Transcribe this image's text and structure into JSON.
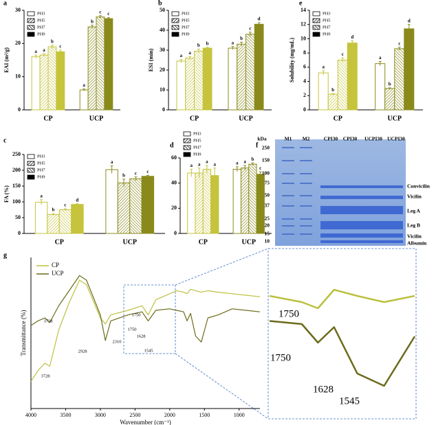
{
  "chart_data": [
    {
      "panel": "a",
      "type": "bar",
      "ylabel": "EAI (m²/g)",
      "categories": [
        "CP",
        "UCP"
      ],
      "category_colors": [
        "#c5c43c",
        "#8a8a1c"
      ],
      "series": [
        {
          "name": "PH3",
          "pattern": "open",
          "values": [
            16,
            6
          ],
          "errors": [
            0.5,
            0.3
          ],
          "letters": [
            "a",
            "a"
          ]
        },
        {
          "name": "PH5",
          "pattern": "hatch-right",
          "values": [
            16.5,
            25
          ],
          "errors": [
            0.4,
            0.5
          ],
          "letters": [
            "a",
            "b"
          ]
        },
        {
          "name": "PH7",
          "pattern": "hatch-left",
          "values": [
            19,
            28
          ],
          "errors": [
            0.5,
            0.4
          ],
          "letters": [
            "b",
            "c"
          ]
        },
        {
          "name": "PH9",
          "pattern": "solid",
          "values": [
            17.5,
            27.5
          ],
          "errors": [
            0.5,
            0.3
          ],
          "letters": [
            "c",
            "c"
          ]
        }
      ],
      "ylim": [
        0,
        30
      ],
      "yticks": [
        0,
        10,
        20,
        30
      ],
      "legend": "upper-left"
    },
    {
      "panel": "b",
      "type": "bar",
      "ylabel": "ESI (min)",
      "categories": [
        "CP",
        "UCP"
      ],
      "category_colors": [
        "#c5c43c",
        "#8a8a1c"
      ],
      "series": [
        {
          "name": "PH3",
          "pattern": "open",
          "values": [
            24.5,
            31
          ],
          "errors": [
            0.8,
            0.8
          ],
          "letters": [
            "a",
            "a"
          ]
        },
        {
          "name": "PH5",
          "pattern": "hatch-right",
          "values": [
            26,
            33
          ],
          "errors": [
            0.8,
            1.0
          ],
          "letters": [
            "a",
            "b"
          ]
        },
        {
          "name": "PH7",
          "pattern": "hatch-left",
          "values": [
            29.5,
            38
          ],
          "errors": [
            1.0,
            1.0
          ],
          "letters": [
            "b",
            "c"
          ]
        },
        {
          "name": "PH9",
          "pattern": "solid",
          "values": [
            31,
            43
          ],
          "errors": [
            0.5,
            0.8
          ],
          "letters": [
            "b",
            "d"
          ]
        }
      ],
      "ylim": [
        0,
        50
      ],
      "yticks": [
        0,
        10,
        20,
        30,
        40,
        50
      ],
      "legend": "upper-left"
    },
    {
      "panel": "e",
      "type": "bar",
      "ylabel": "Solubility (mg/mL)",
      "categories": [
        "CP",
        "UCP"
      ],
      "category_colors": [
        "#c5c43c",
        "#8a8a1c"
      ],
      "series": [
        {
          "name": "PH3",
          "pattern": "open",
          "values": [
            5.2,
            6.5
          ],
          "errors": [
            0.3,
            0.3
          ],
          "letters": [
            "a",
            "a"
          ]
        },
        {
          "name": "PH5",
          "pattern": "hatch-right",
          "values": [
            2.2,
            3
          ],
          "errors": [
            0.1,
            0.1
          ],
          "letters": [
            "b",
            "b"
          ]
        },
        {
          "name": "PH7",
          "pattern": "hatch-left",
          "values": [
            7,
            8.6
          ],
          "errors": [
            0.3,
            0.2
          ],
          "letters": [
            "c",
            "c"
          ]
        },
        {
          "name": "PH9",
          "pattern": "solid",
          "values": [
            9.4,
            11.4
          ],
          "errors": [
            0.3,
            0.6
          ],
          "letters": [
            "d",
            "d"
          ]
        }
      ],
      "ylim": [
        0,
        14
      ],
      "yticks": [
        0,
        2,
        4,
        6,
        8,
        10,
        12,
        14
      ],
      "legend": "upper-left"
    },
    {
      "panel": "c",
      "type": "bar",
      "ylabel": "FA (%)",
      "categories": [
        "CP",
        "UCP"
      ],
      "category_colors": [
        "#c5c43c",
        "#8a8a1c"
      ],
      "series": [
        {
          "name": "PH3",
          "pattern": "open",
          "values": [
            99,
            202
          ],
          "errors": [
            8,
            12
          ],
          "letters": [
            "a",
            "a"
          ]
        },
        {
          "name": "PH5",
          "pattern": "hatch-right",
          "values": [
            60,
            160
          ],
          "errors": [
            3,
            12
          ],
          "letters": [
            "b",
            "b"
          ]
        },
        {
          "name": "PH7",
          "pattern": "hatch-left",
          "values": [
            75,
            173
          ],
          "errors": [
            3,
            6
          ],
          "letters": [
            "c",
            "c"
          ]
        },
        {
          "name": "PH9",
          "pattern": "solid",
          "values": [
            92,
            181
          ],
          "errors": [
            2,
            3
          ],
          "letters": [
            "d",
            "c"
          ]
        }
      ],
      "ylim": [
        0,
        250
      ],
      "yticks": [
        0,
        50,
        100,
        150,
        200,
        250
      ],
      "legend": "upper-left"
    },
    {
      "panel": "d",
      "type": "bar",
      "categories": [
        "CP",
        "UCP"
      ],
      "category_colors": [
        "#c5c43c",
        "#8a8a1c"
      ],
      "series": [
        {
          "name": "PH3",
          "pattern": "open",
          "values": [
            48,
            51
          ],
          "errors": [
            3,
            2
          ],
          "letters": [
            "a",
            "a"
          ]
        },
        {
          "name": "PH5",
          "pattern": "hatch-right",
          "values": [
            48,
            52
          ],
          "errors": [
            4,
            2
          ],
          "letters": [
            "a",
            "a"
          ]
        },
        {
          "name": "PH7",
          "pattern": "hatch-left",
          "values": [
            51,
            55
          ],
          "errors": [
            3,
            1
          ],
          "letters": [
            "a",
            "b"
          ]
        },
        {
          "name": "PH9",
          "pattern": "solid",
          "values": [
            46,
            47
          ],
          "errors": [
            6,
            2
          ],
          "letters": [
            "a",
            "c"
          ]
        }
      ],
      "ylim": [
        0,
        60
      ],
      "yticks": [
        0,
        20,
        40,
        60
      ],
      "legend": "upper-left"
    },
    {
      "panel": "g",
      "type": "line",
      "xlabel": "Wavenumber (cm⁻¹)",
      "ylabel": "Transmittance (%)",
      "x": [
        4000,
        3900,
        3800,
        3728,
        3600,
        3450,
        3300,
        3200,
        3000,
        2928,
        2850,
        2600,
        2400,
        2310,
        2200,
        2000,
        1900,
        1800,
        1750,
        1700,
        1628,
        1545,
        1450,
        1300,
        1100,
        900,
        700
      ],
      "series": [
        {
          "name": "CP",
          "color": "#bcc03e",
          "values": [
            18,
            25,
            30,
            28,
            52,
            70,
            85,
            82,
            60,
            56,
            62,
            65,
            68,
            62,
            72,
            76,
            78,
            77,
            76,
            79,
            78,
            77,
            78,
            77,
            76,
            75,
            74
          ]
        },
        {
          "name": "UCP",
          "color": "#6b6a1a",
          "values": [
            55,
            58,
            60,
            57,
            68,
            78,
            88,
            85,
            62,
            45,
            58,
            62,
            64,
            58,
            65,
            66,
            65,
            64,
            58,
            63,
            48,
            44,
            60,
            62,
            66,
            65,
            64
          ]
        }
      ],
      "xlim": [
        4000,
        700
      ],
      "xticks": [
        4000,
        3500,
        3000,
        2500,
        2000,
        1500,
        1000
      ],
      "ylim": [
        0,
        100
      ],
      "annotations": [
        "3728",
        "2928",
        "2310",
        "1750",
        "1750",
        "1628",
        "1545",
        "3728"
      ],
      "inset": {
        "xlim": [
          1900,
          1450
        ],
        "annotations": [
          "1750",
          "1750",
          "1628",
          "1545"
        ]
      },
      "legend": "upper-left"
    }
  ],
  "gel": {
    "panel": "f",
    "unit": "kDa",
    "lanes": [
      "M1",
      "M2",
      "CPI30",
      "CPI30",
      "UCPI30",
      "UCPI30"
    ],
    "markers": [
      "250",
      "150",
      "100",
      "75",
      "50",
      "37",
      "25",
      "20",
      "15",
      "10"
    ],
    "bands": [
      "Convicilin",
      "Vicilin",
      "Leg A",
      "Leg B",
      "Vicilin",
      "Albumin"
    ]
  }
}
